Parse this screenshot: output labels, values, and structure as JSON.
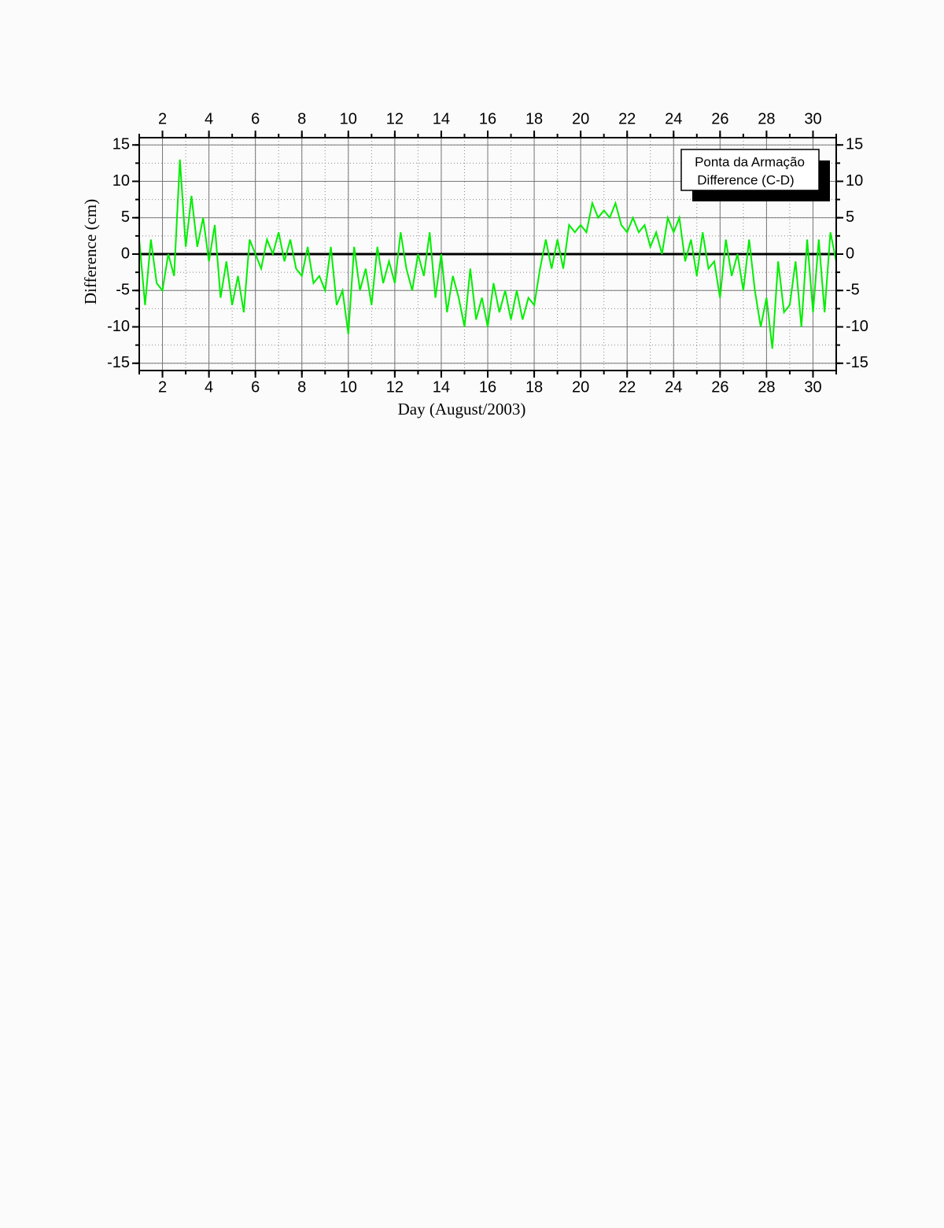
{
  "chart_data": {
    "type": "line",
    "ylabel": "Difference (cm)",
    "xlabel": "Day (August/2003)",
    "legend_title": "Ponta da Armação",
    "legend": "upper right",
    "x": [
      1,
      1.25,
      1.5,
      1.75,
      2,
      2.25,
      2.5,
      2.75,
      3,
      3.25,
      3.5,
      3.75,
      4,
      4.25,
      4.5,
      4.75,
      5,
      5.25,
      5.5,
      5.75,
      6,
      6.25,
      6.5,
      6.75,
      7,
      7.25,
      7.5,
      7.75,
      8,
      8.25,
      8.5,
      8.75,
      9,
      9.25,
      9.5,
      9.75,
      10,
      10.25,
      10.5,
      10.75,
      11,
      11.25,
      11.5,
      11.75,
      12,
      12.25,
      12.5,
      12.75,
      13,
      13.25,
      13.5,
      13.75,
      14,
      14.25,
      14.5,
      14.75,
      15,
      15.25,
      15.5,
      15.75,
      16,
      16.25,
      16.5,
      16.75,
      17,
      17.25,
      17.5,
      17.75,
      18,
      18.25,
      18.5,
      18.75,
      19,
      19.25,
      19.5,
      19.75,
      20,
      20.25,
      20.5,
      20.75,
      21,
      21.25,
      21.5,
      21.75,
      22,
      22.25,
      22.5,
      22.75,
      23,
      23.25,
      23.5,
      23.75,
      24,
      24.25,
      24.5,
      24.75,
      25,
      25.25,
      25.5,
      25.75,
      26,
      26.25,
      26.5,
      26.75,
      27,
      27.25,
      27.5,
      27.75,
      28,
      28.25,
      28.5,
      28.75,
      29,
      29.25,
      29.5,
      29.75,
      30,
      30.25,
      30.5,
      30.75,
      31
    ],
    "series": [
      {
        "name": "Difference (C-D)",
        "color": "#00ee00",
        "values": [
          2,
          -7,
          2,
          -4,
          -5,
          0,
          -3,
          13,
          1,
          8,
          1,
          5,
          -1,
          4,
          -6,
          -1,
          -7,
          -3,
          -8,
          2,
          0,
          -2,
          2,
          0,
          3,
          -1,
          2,
          -2,
          -3,
          1,
          -4,
          -3,
          -5,
          1,
          -7,
          -5,
          -11,
          1,
          -5,
          -2,
          -7,
          1,
          -4,
          -1,
          -4,
          3,
          -2,
          -5,
          0,
          -3,
          3,
          -6,
          0,
          -8,
          -3,
          -6,
          -10,
          -2,
          -9,
          -6,
          -10,
          -4,
          -8,
          -5,
          -9,
          -5,
          -9,
          -6,
          -7,
          -2,
          2,
          -2,
          2,
          -2,
          4,
          3,
          4,
          3,
          7,
          5,
          6,
          5,
          7,
          4,
          3,
          5,
          3,
          4,
          1,
          3,
          0,
          5,
          3,
          5,
          -1,
          2,
          -3,
          3,
          -2,
          -1,
          -6,
          2,
          -3,
          0,
          -5,
          2,
          -5,
          -10,
          -6,
          -13,
          -1,
          -8,
          -7,
          -1,
          -10,
          2,
          -8,
          2,
          -8,
          3,
          -1
        ]
      }
    ],
    "xlim": [
      1,
      31
    ],
    "ylim": [
      -16,
      16
    ],
    "xticks": [
      2,
      4,
      6,
      8,
      10,
      12,
      14,
      16,
      18,
      20,
      22,
      24,
      26,
      28,
      30
    ],
    "yticks": [
      -15,
      -10,
      -5,
      0,
      5,
      10,
      15
    ],
    "xminorticks": [
      1,
      2,
      3,
      4,
      5,
      6,
      7,
      8,
      9,
      10,
      11,
      12,
      13,
      14,
      15,
      16,
      17,
      18,
      19,
      20,
      21,
      22,
      23,
      24,
      25,
      26,
      27,
      28,
      29,
      30,
      31
    ],
    "yminorticks": [
      -15,
      -12.5,
      -10,
      -7.5,
      -5,
      -2.5,
      0,
      2.5,
      5,
      7.5,
      10,
      12.5,
      15
    ],
    "hline": 0,
    "grid": true
  }
}
